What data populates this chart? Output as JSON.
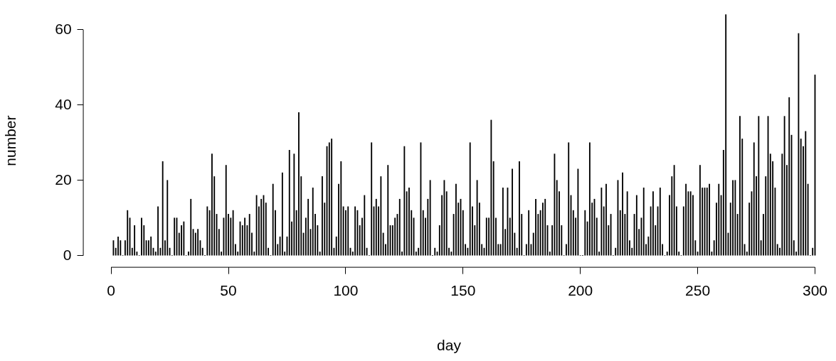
{
  "chart_data": {
    "type": "bar",
    "xlabel": "day",
    "ylabel": "number",
    "color": "#000000",
    "grid": false,
    "legend": false,
    "xlim": [
      -12,
      300
    ],
    "xticks": [
      0,
      50,
      100,
      150,
      200,
      250,
      300
    ],
    "ylim": [
      -3,
      64
    ],
    "yticks": [
      0,
      20,
      40,
      60
    ],
    "x": [
      1,
      2,
      3,
      4,
      5,
      6,
      7,
      8,
      9,
      10,
      11,
      12,
      13,
      14,
      15,
      16,
      17,
      18,
      19,
      20,
      21,
      22,
      23,
      24,
      25,
      26,
      27,
      28,
      29,
      30,
      31,
      32,
      33,
      34,
      35,
      36,
      37,
      38,
      39,
      40,
      41,
      42,
      43,
      44,
      45,
      46,
      47,
      48,
      49,
      50,
      51,
      52,
      53,
      54,
      55,
      56,
      57,
      58,
      59,
      60,
      61,
      62,
      63,
      64,
      65,
      66,
      67,
      68,
      69,
      70,
      71,
      72,
      73,
      74,
      75,
      76,
      77,
      78,
      79,
      80,
      81,
      82,
      83,
      84,
      85,
      86,
      87,
      88,
      89,
      90,
      91,
      92,
      93,
      94,
      95,
      96,
      97,
      98,
      99,
      100,
      101,
      102,
      103,
      104,
      105,
      106,
      107,
      108,
      109,
      110,
      111,
      112,
      113,
      114,
      115,
      116,
      117,
      118,
      119,
      120,
      121,
      122,
      123,
      124,
      125,
      126,
      127,
      128,
      129,
      130,
      131,
      132,
      133,
      134,
      135,
      136,
      137,
      138,
      139,
      140,
      141,
      142,
      143,
      144,
      145,
      146,
      147,
      148,
      149,
      150,
      151,
      152,
      153,
      154,
      155,
      156,
      157,
      158,
      159,
      160,
      161,
      162,
      163,
      164,
      165,
      166,
      167,
      168,
      169,
      170,
      171,
      172,
      173,
      174,
      175,
      176,
      177,
      178,
      179,
      180,
      181,
      182,
      183,
      184,
      185,
      186,
      187,
      188,
      189,
      190,
      191,
      192,
      193,
      194,
      195,
      196,
      197,
      198,
      199,
      200,
      201,
      202,
      203,
      204,
      205,
      206,
      207,
      208,
      209,
      210,
      211,
      212,
      213,
      214,
      215,
      216,
      217,
      218,
      219,
      220,
      221,
      222,
      223,
      224,
      225,
      226,
      227,
      228,
      229,
      230,
      231,
      232,
      233,
      234,
      235,
      236,
      237,
      238,
      239,
      240,
      241,
      242,
      243,
      244,
      245,
      246,
      247,
      248,
      249,
      250,
      251,
      252,
      253,
      254,
      255,
      256,
      257,
      258,
      259,
      260,
      261,
      262,
      263,
      264,
      265,
      266,
      267,
      268,
      269,
      270,
      271,
      272,
      273,
      274,
      275,
      276,
      277,
      278,
      279,
      280,
      281,
      282,
      283,
      284,
      285,
      286,
      287,
      288,
      289,
      290,
      291,
      292,
      293,
      294,
      295,
      296,
      297,
      298,
      299,
      300
    ],
    "values": [
      4,
      2,
      5,
      4,
      0,
      4,
      12,
      10,
      2,
      8,
      1,
      0,
      10,
      8,
      4,
      4,
      5,
      2,
      1,
      13,
      2,
      25,
      4,
      20,
      2,
      0,
      10,
      10,
      6,
      8,
      9,
      0,
      1,
      15,
      7,
      6,
      7,
      4,
      2,
      0,
      13,
      12,
      27,
      21,
      11,
      7,
      1,
      10,
      24,
      11,
      10,
      12,
      3,
      1,
      9,
      8,
      10,
      8,
      11,
      6,
      1,
      16,
      13,
      15,
      16,
      14,
      2,
      0,
      19,
      12,
      3,
      5,
      22,
      1,
      5,
      28,
      9,
      27,
      12,
      38,
      21,
      6,
      10,
      15,
      7,
      18,
      11,
      8,
      1,
      21,
      14,
      29,
      30,
      31,
      2,
      5,
      19,
      25,
      13,
      12,
      13,
      2,
      1,
      13,
      12,
      8,
      10,
      16,
      2,
      0,
      30,
      13,
      15,
      13,
      21,
      6,
      3,
      24,
      8,
      8,
      10,
      11,
      15,
      1,
      29,
      17,
      18,
      12,
      10,
      1,
      2,
      30,
      12,
      10,
      15,
      20,
      0,
      2,
      1,
      8,
      16,
      20,
      17,
      2,
      1,
      11,
      19,
      14,
      15,
      12,
      3,
      2,
      30,
      13,
      8,
      20,
      14,
      3,
      2,
      10,
      10,
      36,
      25,
      10,
      3,
      3,
      18,
      7,
      18,
      10,
      23,
      6,
      2,
      25,
      11,
      0,
      3,
      12,
      3,
      6,
      15,
      11,
      12,
      14,
      15,
      8,
      1,
      8,
      27,
      20,
      17,
      8,
      0,
      3,
      30,
      16,
      12,
      10,
      23,
      0,
      0,
      12,
      9,
      30,
      14,
      15,
      10,
      1,
      18,
      13,
      19,
      8,
      11,
      0,
      2,
      20,
      12,
      22,
      11,
      17,
      4,
      2,
      11,
      16,
      7,
      10,
      18,
      3,
      5,
      13,
      17,
      8,
      13,
      18,
      3,
      0,
      1,
      16,
      21,
      24,
      13,
      1,
      0,
      13,
      19,
      17,
      17,
      16,
      4,
      1,
      24,
      18,
      18,
      18,
      19,
      1,
      4,
      14,
      19,
      16,
      28,
      64,
      6,
      14,
      20,
      20,
      11,
      37,
      31,
      3,
      1,
      14,
      17,
      30,
      21,
      37,
      4,
      11,
      21,
      37,
      27,
      25,
      18,
      3,
      2,
      27,
      37,
      24,
      42,
      32,
      4,
      1,
      59,
      31,
      29,
      33,
      19,
      0,
      2,
      48
    ]
  }
}
